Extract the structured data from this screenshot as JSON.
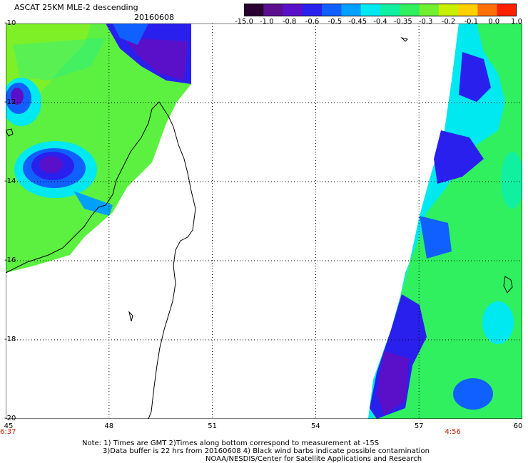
{
  "header": {
    "title": "ASCAT 25KM MLE-2 descending",
    "date": "20160608"
  },
  "colorbar": {
    "ticks": [
      "-15.0",
      "-1.0",
      "-0.8",
      "-0.6",
      "-0.5",
      "-0.45",
      "-0.4",
      "-0.35",
      "-0.3",
      "-0.2",
      "-0.1",
      "0.0",
      "1.0"
    ],
    "colors": [
      "#2a0033",
      "#5a0f8f",
      "#5a10c8",
      "#2a20ee",
      "#1060ff",
      "#00a0ff",
      "#00e8f0",
      "#10f0a0",
      "#30f060",
      "#70f030",
      "#c8f000",
      "#ffd000",
      "#ff7000",
      "#ff2000"
    ]
  },
  "map": {
    "lat_labels": [
      "-10",
      "-12",
      "-14",
      "-16",
      "-18",
      "-20"
    ],
    "lon_labels": [
      "45",
      "48",
      "51",
      "54",
      "57",
      "60"
    ],
    "lat_range": [
      -20,
      -10
    ],
    "lon_range": [
      45,
      60
    ],
    "time_labels": [
      {
        "text": "6:37",
        "lon": 45
      },
      {
        "text": "4:56",
        "lon": 58
      }
    ]
  },
  "notes": [
    "Note: 1) Times are GMT 2)Times along bottom correspond to measurement at -15S",
    "3)Data buffer is 22 hrs from 20160608 4) Black wind barbs indicate possible contamination",
    "NOAA/NESDIS/Center for Satellite Applications and Research"
  ]
}
